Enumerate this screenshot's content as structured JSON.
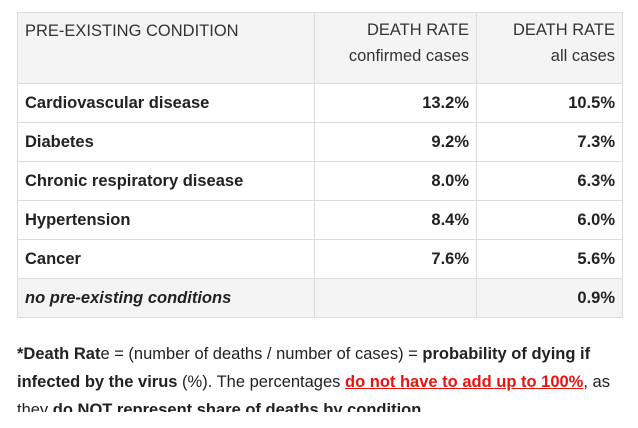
{
  "table": {
    "headers": [
      {
        "line1": "PRE-EXISTING CONDITION",
        "line2": ""
      },
      {
        "line1": "DEATH RATE",
        "line2": "confirmed cases"
      },
      {
        "line1": "DEATH RATE",
        "line2": "all cases"
      }
    ],
    "rows": [
      {
        "condition": "Cardiovascular disease",
        "confirmed": "13.2%",
        "all": "10.5%"
      },
      {
        "condition": "Diabetes",
        "confirmed": "9.2%",
        "all": "7.3%"
      },
      {
        "condition": "Chronic respiratory disease",
        "confirmed": "8.0%",
        "all": "6.3%"
      },
      {
        "condition": "Hypertension",
        "confirmed": "8.4%",
        "all": "6.0%"
      },
      {
        "condition": "Cancer",
        "confirmed": "7.6%",
        "all": "5.6%"
      },
      {
        "condition": "no pre-existing conditions",
        "confirmed": "",
        "all": "0.9%"
      }
    ]
  },
  "note": {
    "star_label": "*Death Rat",
    "star_tail": "e",
    "formula": " = (number of deaths / number of cases) = ",
    "prob": "probability of dying if infected by the virus",
    "pct": " (%). The percentages ",
    "red1": "do not have to add up to 100%",
    "mid": ", as they ",
    "bold2": "do NOT represent share of deaths by condition"
  },
  "colors": {
    "accent_red": "#e8150e",
    "header_bg": "#f4f4f4",
    "border": "#dcdcdc"
  }
}
